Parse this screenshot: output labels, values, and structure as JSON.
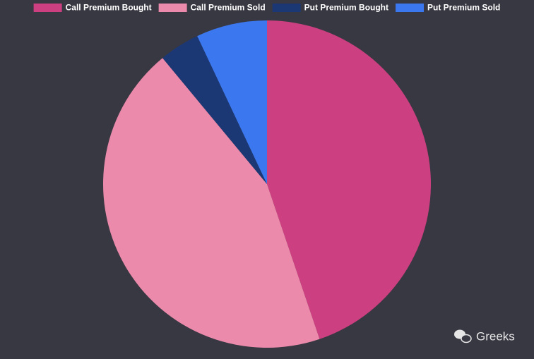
{
  "chart_data": {
    "type": "pie",
    "categories": [
      "Call Premium Bought",
      "Call Premium Sold",
      "Put Premium Bought",
      "Put Premium Sold"
    ],
    "values": [
      44.8,
      44.2,
      4.0,
      7.0
    ],
    "colors": [
      "#cc3f80",
      "#ec8aab",
      "#1b3875",
      "#3b78f0"
    ],
    "legend": "top",
    "watermark": "Greeks"
  }
}
